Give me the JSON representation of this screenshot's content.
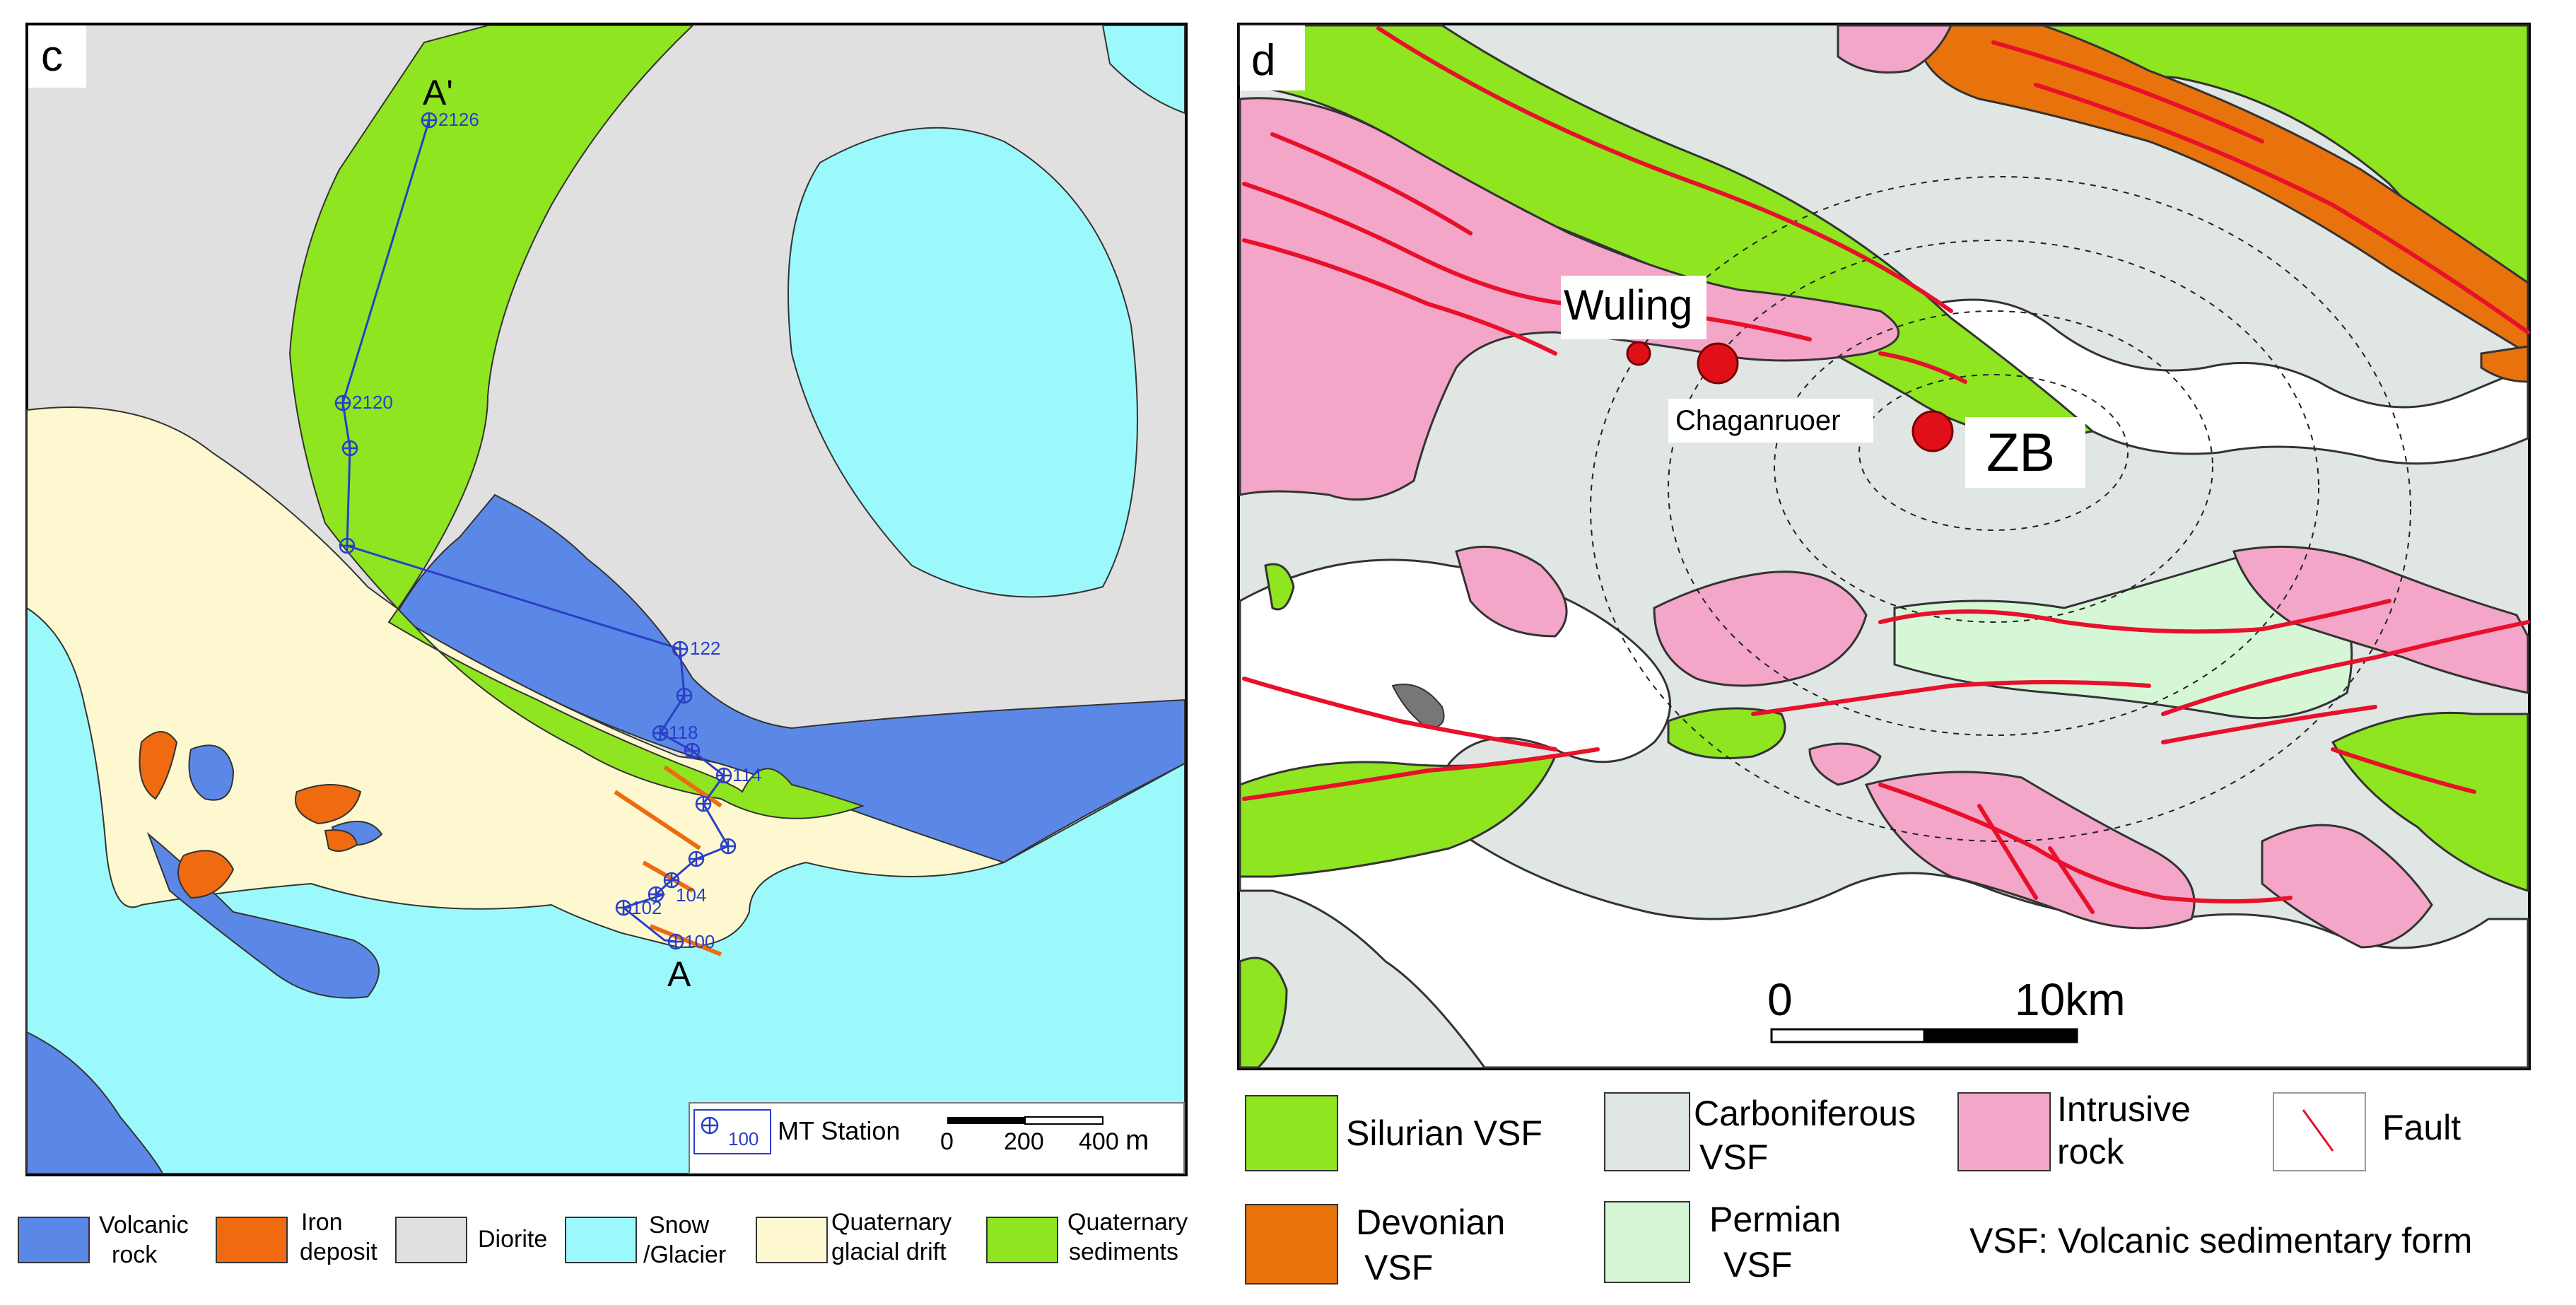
{
  "panel_c": {
    "panel_letter": "c",
    "profile_end_label": "A'",
    "profile_start_label": "A",
    "stations": [
      {
        "label": "2126"
      },
      {
        "label": "2120"
      },
      {
        "label": "122"
      },
      {
        "label": "118"
      },
      {
        "label": "114"
      },
      {
        "label": "104"
      },
      {
        "label": "102"
      },
      {
        "label": "100"
      }
    ],
    "station_legend_number": "100",
    "station_legend_label": "MT Station",
    "scale_ticks": [
      "0",
      "200",
      "400"
    ],
    "scale_unit": "m",
    "colors": {
      "volcanic": "#5b88e6",
      "iron": "#f06a10",
      "diorite": "#e0e0e0",
      "snow": "#9cf9fb",
      "drift": "#fdf8cf",
      "sediments": "#8fe520",
      "profile_line": "#2a3fc8"
    }
  },
  "legend_c": [
    {
      "line1": "Volcanic",
      "line2": "rock",
      "color": "#5b88e6"
    },
    {
      "line1": "Iron",
      "line2": "deposit",
      "color": "#f06a10"
    },
    {
      "line1": "Diorite",
      "line2": "",
      "color": "#e0e0e0"
    },
    {
      "line1": "Snow",
      "line2": "/Glacier",
      "color": "#9cf9fb"
    },
    {
      "line1": "Quaternary",
      "line2": "glacial drift",
      "color": "#fdf8cf"
    },
    {
      "line1": "Quaternary",
      "line2": "sediments",
      "color": "#8fe520"
    }
  ],
  "panel_d": {
    "panel_letter": "d",
    "place_labels": [
      "Wuling",
      "Chaganruoer",
      "ZB"
    ],
    "scale_start": "0",
    "scale_end": "10km",
    "colors": {
      "silurian": "#8fe520",
      "devonian": "#e8730c",
      "carboniferous": "#dfe6e3",
      "permian": "#d6f7d6",
      "intrusive": "#f3a6c8",
      "fault": "#e8102b",
      "deposit": "#e01018"
    }
  },
  "legend_d": [
    {
      "line1": "Silurian VSF",
      "line2": "",
      "color": "#8fe520"
    },
    {
      "line1": "Carboniferous",
      "line2": "VSF",
      "color": "#dfe6e3"
    },
    {
      "line1": "Intrusive",
      "line2": "rock",
      "color": "#f3a6c8"
    },
    {
      "line1": "Fault",
      "line2": "",
      "color": "fault"
    },
    {
      "line1": "Devonian",
      "line2": "VSF",
      "color": "#e8730c"
    },
    {
      "line1": "Permian",
      "line2": "VSF",
      "color": "#d6f7d6"
    }
  ],
  "vsf_note": "VSF: Volcanic sedimentary form"
}
